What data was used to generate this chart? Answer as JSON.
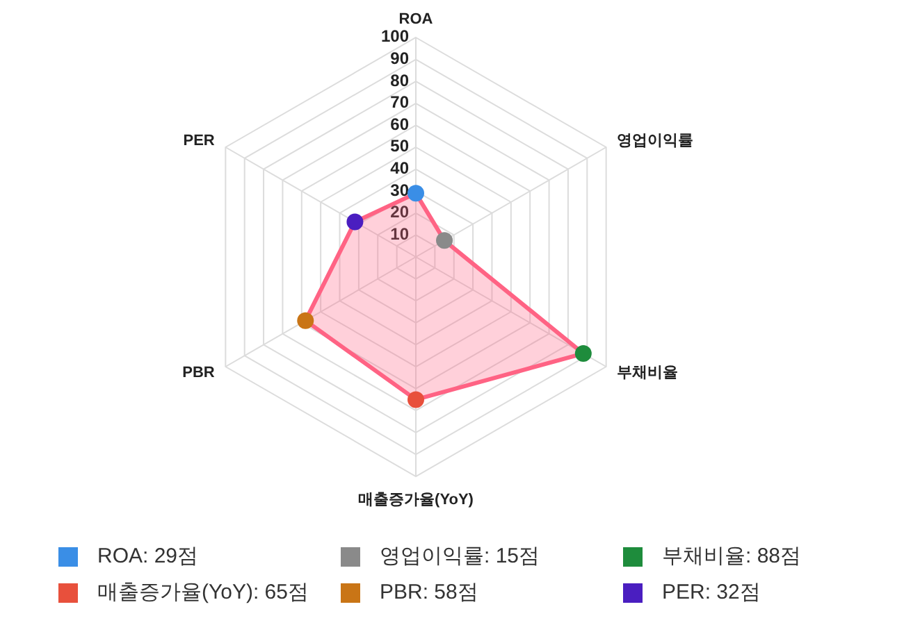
{
  "chart_data": {
    "type": "radar",
    "categories": [
      "ROA",
      "영업이익률",
      "부채비율",
      "매출증가율(YoY)",
      "PBR",
      "PER"
    ],
    "series": [
      {
        "color": "#ff6384",
        "colors": [
          "#3a8ee6",
          "#8a8a8a",
          "#1e8c3c",
          "#e8503c",
          "#c97516",
          "#4a1ec0"
        ],
        "values": [
          29,
          15,
          88,
          65,
          58,
          32
        ]
      }
    ],
    "annotations": [
      "ROA: 29점",
      "영업이익률: 15점",
      "부채비율: 88점",
      "매출증가율(YoY): 65점",
      "PBR: 58점",
      "PER: 32점"
    ],
    "ylim": [
      0,
      100
    ],
    "yticks": [
      10,
      20,
      30,
      40,
      50,
      60,
      70,
      80,
      90,
      100
    ],
    "grid": true,
    "marker": "circle"
  }
}
